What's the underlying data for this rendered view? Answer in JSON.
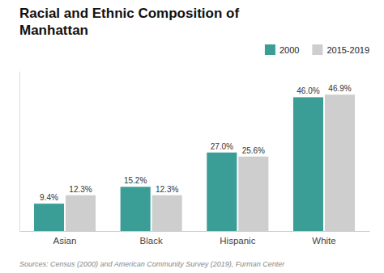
{
  "chart_data": {
    "type": "bar",
    "title": "Racial and Ethnic Composition of Manhattan",
    "categories": [
      "Asian",
      "Black",
      "Hispanic",
      "White"
    ],
    "series": [
      {
        "name": "2000",
        "color": "#3a9e96",
        "values": [
          9.4,
          15.2,
          27.0,
          46.0
        ],
        "value_labels": [
          "9.4%",
          "15.2%",
          "27.0%",
          "46.0%"
        ]
      },
      {
        "name": "2015-2019",
        "color": "#cecece",
        "values": [
          12.3,
          12.3,
          25.6,
          46.9
        ],
        "value_labels": [
          "12.3%",
          "12.3%",
          "25.6%",
          "46.9%"
        ]
      }
    ],
    "ylim": [
      0,
      55
    ],
    "tick_labels": "x",
    "data_labels": true,
    "grid": false,
    "legend": "upper right",
    "annotations": [
      "Sources: Census (2000) and American Community Survey (2019), Furman Center"
    ]
  }
}
